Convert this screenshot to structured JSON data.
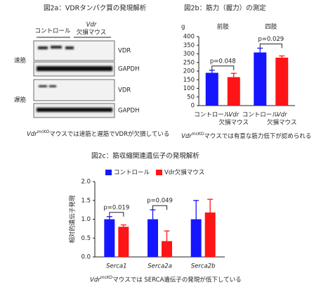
{
  "blot": {
    "title": "図2a：VDRタンパク質の発現解析",
    "group_labels": [
      [
        "コントロール"
      ],
      [
        "Vdr",
        "欠損マウス"
      ]
    ],
    "tissue_labels": [
      "速筋",
      "遅筋"
    ],
    "band_labels": [
      "VDR",
      "GAPDH",
      "VDR",
      "GAPDH"
    ],
    "caption": {
      "italic": "Vdr",
      "sup": "mcKO",
      "text": "マウスでは速筋と遅筋でVDRが欠損している"
    }
  },
  "chart_data": [
    {
      "type": "bar",
      "title": "図2b：筋力（握力）の測定",
      "ylabel": "g",
      "groups": [
        "前肢",
        "四肢"
      ],
      "series": [
        {
          "color": "#1515ff",
          "values": [
            190,
            308
          ],
          "errors": [
            15,
            25
          ],
          "bar_label": [
            "コントロール"
          ]
        },
        {
          "color": "#ff1515",
          "values": [
            165,
            278
          ],
          "errors": [
            22,
            10
          ],
          "bar_label": [
            "Vdr",
            "欠損マウス"
          ]
        }
      ],
      "ylim": [
        0,
        400
      ],
      "yticks": [
        0,
        50,
        100,
        150,
        200,
        250,
        300,
        350,
        400
      ],
      "annotations": [
        {
          "text": "p=0.048",
          "group": 0
        },
        {
          "text": "p=0.029",
          "group": 1
        }
      ],
      "caption": {
        "italic": "Vdr",
        "sup": "mcKO",
        "text": "マウスでは有意な筋力低下が認められる"
      }
    },
    {
      "type": "bar",
      "title": "図2c：筋収縮関連遺伝子の発現解析",
      "ylabel": "相対的遺伝子発現",
      "categories": [
        "Serca1",
        "Serca2a",
        "Serca2b"
      ],
      "series": [
        {
          "name": "コントロール",
          "color": "#1515ff",
          "values": [
            1.0,
            1.0,
            1.0
          ],
          "errors": [
            0.07,
            0.25,
            0.5
          ]
        },
        {
          "name": "Vdr欠損マウス",
          "color": "#ff1515",
          "values": [
            0.8,
            0.42,
            1.18
          ],
          "errors": [
            0.05,
            0.27,
            0.35
          ]
        }
      ],
      "ylim": [
        0,
        2.0
      ],
      "yticks": [
        {
          "value": 0,
          "label": "0.0"
        },
        0.5,
        {
          "value": 1,
          "label": "1.0"
        },
        1.5,
        {
          "value": 2,
          "label": "2.0"
        }
      ],
      "legend": "top",
      "annotations": [
        {
          "text": "p=0.019",
          "group": 0
        },
        {
          "text": "p=0.049",
          "group": 1
        }
      ],
      "caption": {
        "italic": "Vdr",
        "sup": "mcKO",
        "text": "マウスでは SERCA遺伝子の発現が低下している"
      }
    }
  ]
}
